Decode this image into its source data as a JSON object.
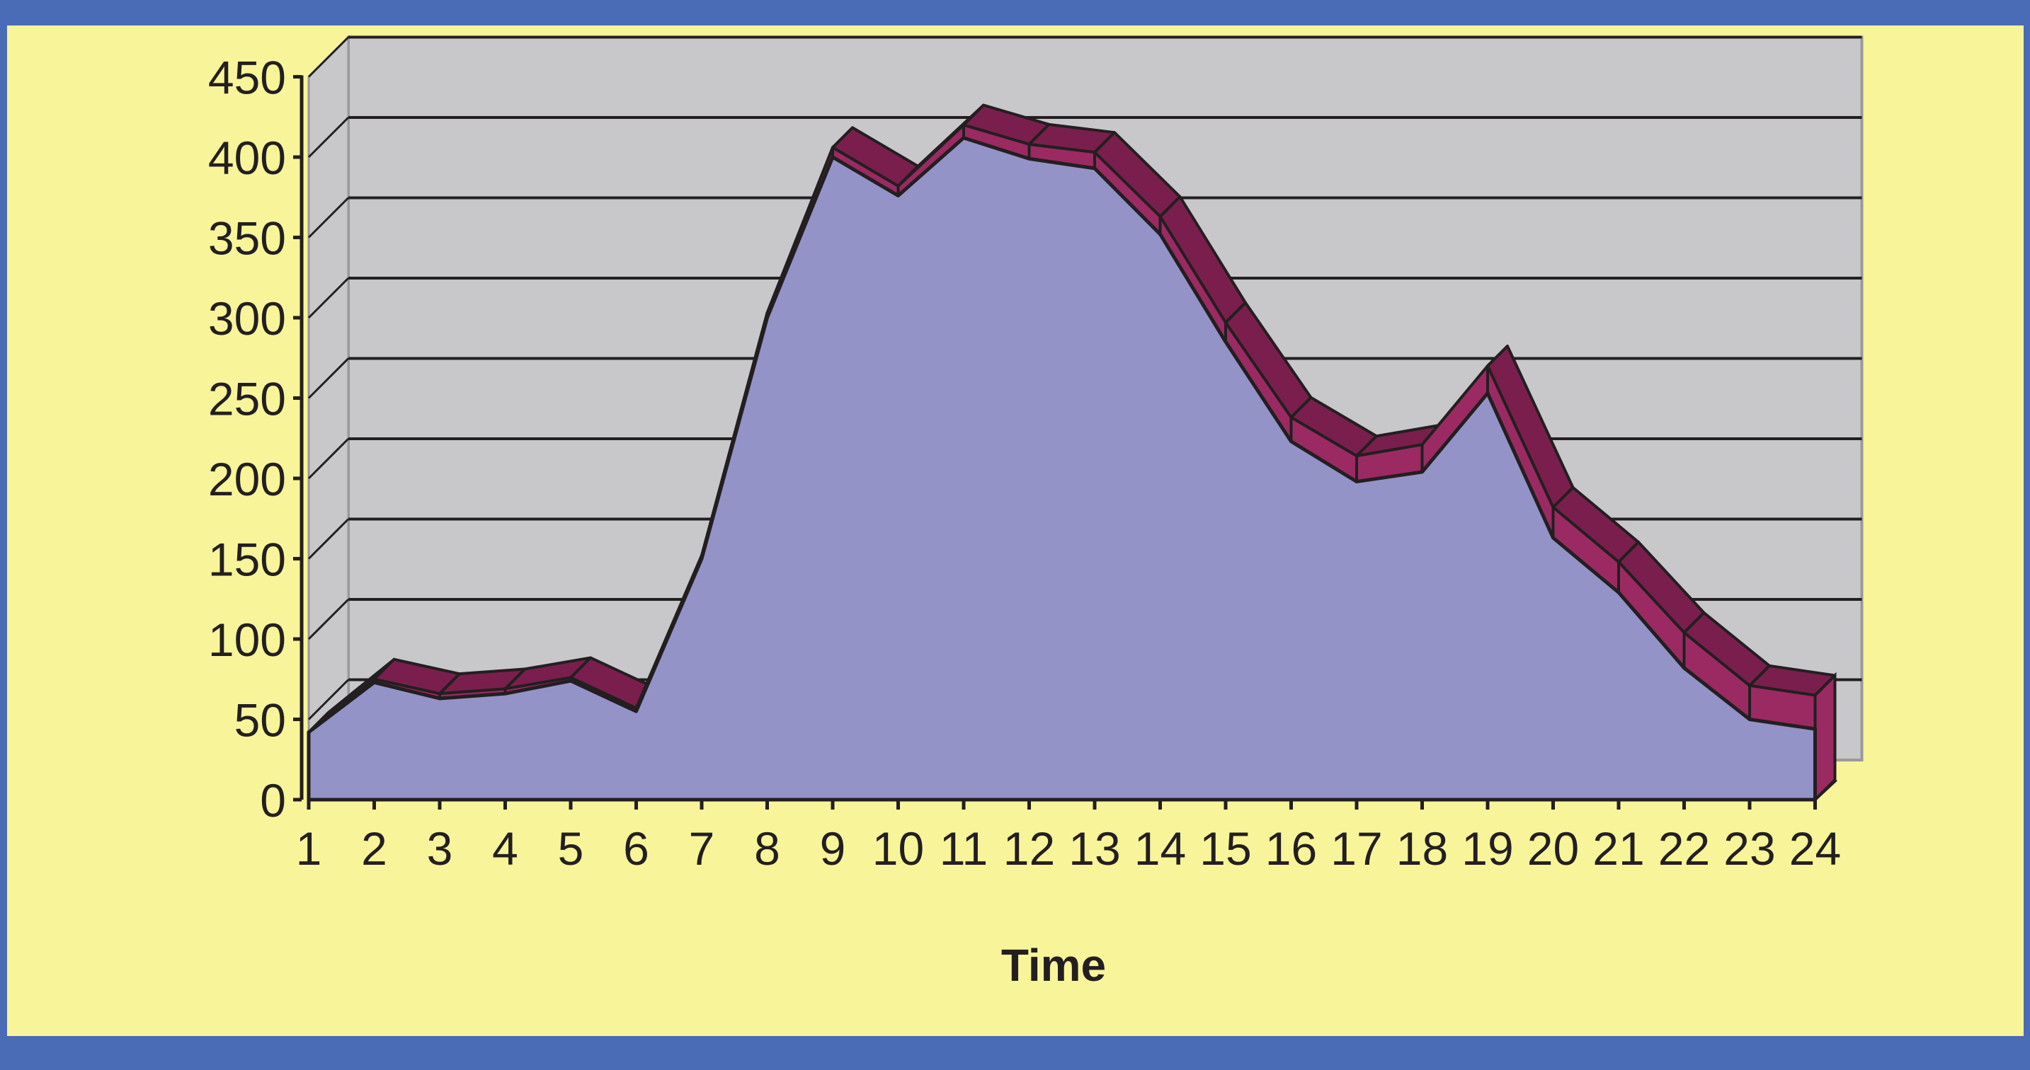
{
  "chart_data": {
    "type": "area",
    "title": "",
    "xlabel": "Time",
    "ylabel": "",
    "x": [
      "1",
      "2",
      "3",
      "4",
      "5",
      "6",
      "7",
      "8",
      "9",
      "10",
      "11",
      "12",
      "13",
      "14",
      "15",
      "16",
      "17",
      "18",
      "19",
      "20",
      "21",
      "22",
      "23",
      "24"
    ],
    "series": [
      {
        "values": [
          42,
          73,
          63,
          66,
          74,
          55,
          150,
          300,
          400,
          376,
          412,
          399,
          393,
          352,
          285,
          223,
          198,
          204,
          253,
          163,
          129,
          82,
          50,
          44
        ]
      },
      {
        "values": [
          0,
          2,
          3,
          3,
          2,
          2,
          2,
          3,
          6,
          6,
          8,
          9,
          10,
          11,
          12,
          15,
          16,
          17,
          17,
          19,
          19,
          22,
          21,
          21
        ]
      }
    ],
    "ylim": [
      0,
      450
    ],
    "yticks": [
      "0",
      "50",
      "100",
      "150",
      "200",
      "250",
      "300",
      "350",
      "400",
      "450"
    ],
    "grid": true,
    "legend": "none",
    "colors": {
      "frame": "#4A6BB5",
      "background": "#F8F49A",
      "plot_wall": "#C8C8CA",
      "gridline": "#231F20",
      "series_1": "#9393C8",
      "series_2": "#9B2A63",
      "series_2_top": "#7A1F4D",
      "edge": "#231F20"
    }
  }
}
